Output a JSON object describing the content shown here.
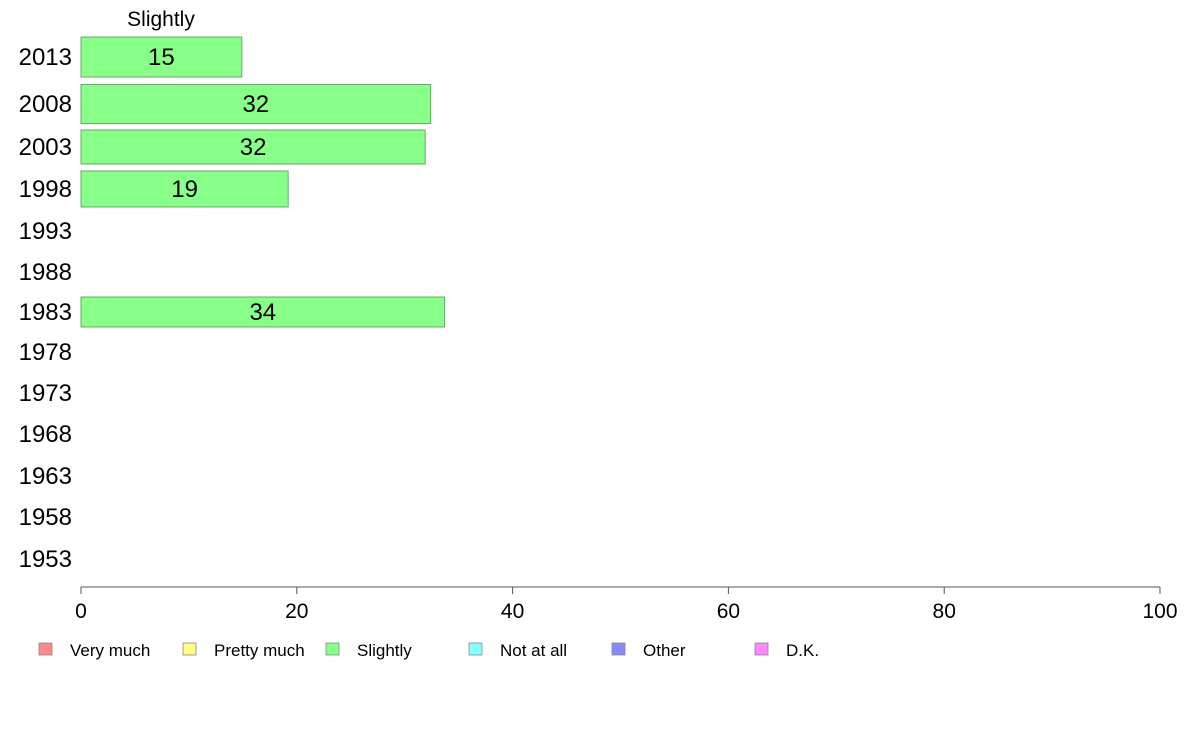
{
  "chart_data": {
    "type": "bar",
    "orientation": "horizontal",
    "title": "Slightly",
    "categories": [
      "2013",
      "2008",
      "2003",
      "1998",
      "1993",
      "1988",
      "1983",
      "1978",
      "1973",
      "1968",
      "1963",
      "1958",
      "1953"
    ],
    "series": [
      {
        "name": "Slightly",
        "color": "#88ff88",
        "values": [
          14.9,
          32.4,
          31.9,
          19.2,
          null,
          null,
          33.7,
          null,
          null,
          null,
          null,
          null,
          null
        ],
        "labels": [
          "15",
          "32",
          "32",
          "19",
          "",
          "",
          "34",
          "",
          "",
          "",
          "",
          "",
          ""
        ]
      }
    ],
    "xlim": [
      0,
      100
    ],
    "xticks": [
      0,
      20,
      40,
      60,
      80,
      100
    ],
    "xtick_labels": [
      "0",
      "20",
      "40",
      "60",
      "80",
      "100"
    ],
    "grid": false,
    "legend_position": "bottom",
    "legend": [
      {
        "label": "Very much",
        "color": "#ff8888"
      },
      {
        "label": "Pretty much",
        "color": "#ffff88"
      },
      {
        "label": "Slightly",
        "color": "#88ff88"
      },
      {
        "label": "Not at all",
        "color": "#88ffff"
      },
      {
        "label": "Other",
        "color": "#8888ff"
      },
      {
        "label": "D.K.",
        "color": "#ff88ff"
      }
    ]
  }
}
